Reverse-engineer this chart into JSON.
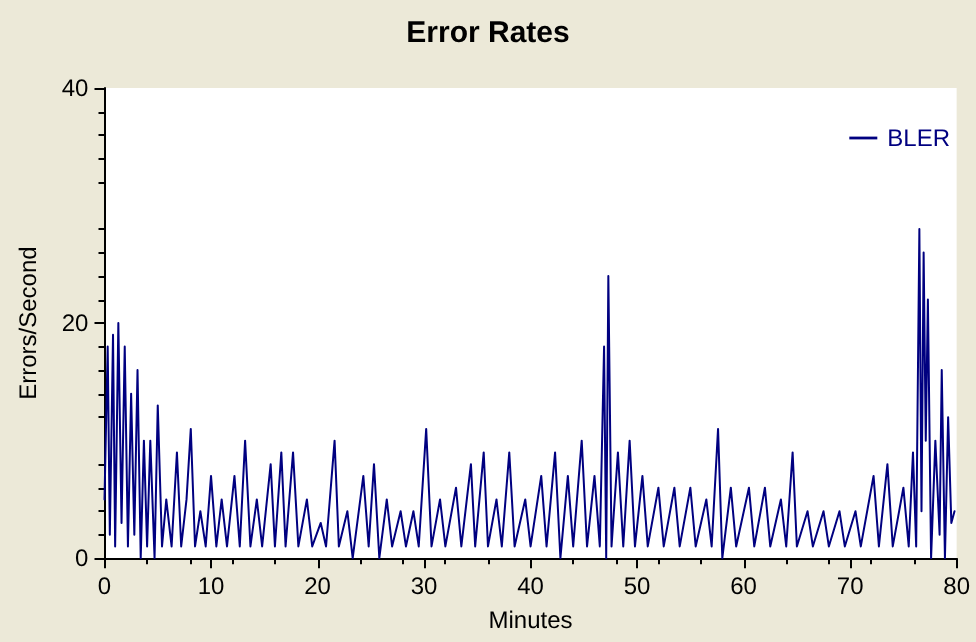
{
  "chart_data": {
    "type": "line",
    "title": "Error Rates",
    "xlabel": "Minutes",
    "ylabel": "Errors/Second",
    "x": [
      0,
      0.3,
      0.5,
      0.8,
      1.0,
      1.3,
      1.6,
      1.9,
      2.2,
      2.5,
      2.8,
      3.1,
      3.4,
      3.7,
      4.0,
      4.3,
      4.7,
      5.0,
      5.4,
      5.8,
      6.3,
      6.8,
      7.2,
      7.7,
      8.1,
      8.5,
      9.0,
      9.5,
      10.0,
      10.5,
      11.0,
      11.5,
      12.2,
      12.7,
      13.2,
      13.7,
      14.3,
      14.8,
      15.6,
      16.0,
      16.6,
      17.0,
      17.7,
      18.2,
      19.0,
      19.5,
      20.3,
      20.8,
      21.6,
      22.0,
      22.8,
      23.3,
      24.3,
      24.8,
      25.3,
      25.8,
      26.5,
      27.0,
      27.8,
      28.3,
      29.0,
      29.5,
      30.2,
      30.7,
      31.5,
      32.0,
      33.0,
      33.5,
      34.4,
      34.8,
      35.6,
      36.0,
      36.8,
      37.3,
      38.0,
      38.5,
      39.5,
      40.0,
      41.0,
      41.5,
      42.3,
      42.8,
      43.5,
      44.0,
      44.8,
      45.3,
      46.0,
      46.5,
      46.9,
      47.1,
      47.3,
      47.6,
      48.2,
      48.7,
      49.3,
      49.8,
      50.5,
      51.0,
      52.0,
      52.5,
      53.5,
      54.0,
      55.0,
      55.5,
      56.5,
      57.0,
      57.6,
      58.0,
      58.8,
      59.3,
      60.5,
      61.0,
      62.0,
      62.5,
      63.5,
      64.0,
      64.6,
      65.0,
      66.0,
      66.5,
      67.5,
      68.0,
      69.0,
      69.5,
      70.5,
      71.0,
      72.2,
      72.7,
      73.5,
      74.0,
      75.0,
      75.5,
      75.9,
      76.2,
      76.5,
      76.7,
      76.9,
      77.1,
      77.3,
      77.6,
      78.0,
      78.4,
      78.6,
      78.9,
      79.2,
      79.5,
      79.8
    ],
    "series": [
      {
        "name": "BLER",
        "color": "#000080",
        "values": [
          5,
          18,
          2,
          19,
          1,
          20,
          3,
          18,
          1,
          14,
          2,
          16,
          0,
          10,
          1,
          10,
          0,
          13,
          1,
          5,
          1,
          9,
          1,
          5,
          11,
          1,
          4,
          1,
          7,
          1,
          5,
          1,
          7,
          1,
          10,
          1,
          5,
          1,
          8,
          1,
          9,
          1,
          9,
          1,
          5,
          1,
          3,
          1,
          10,
          1,
          4,
          0,
          7,
          1,
          8,
          0,
          5,
          1,
          4,
          1,
          4,
          1,
          11,
          1,
          5,
          1,
          6,
          1,
          8,
          1,
          9,
          1,
          5,
          1,
          9,
          1,
          5,
          1,
          7,
          1,
          9,
          0,
          7,
          1,
          10,
          1,
          7,
          1,
          18,
          0,
          24,
          1,
          9,
          1,
          10,
          1,
          7,
          1,
          6,
          1,
          6,
          1,
          6,
          1,
          5,
          1,
          11,
          0,
          6,
          1,
          6,
          1,
          6,
          1,
          5,
          1,
          9,
          1,
          4,
          1,
          4,
          1,
          4,
          1,
          4,
          1,
          7,
          1,
          8,
          1,
          6,
          1,
          9,
          1,
          28,
          4,
          26,
          10,
          22,
          0,
          10,
          2,
          16,
          0,
          12,
          3,
          4
        ]
      }
    ],
    "xlim": [
      0,
      80
    ],
    "xticks": [
      0,
      10,
      20,
      30,
      40,
      50,
      60,
      70,
      80
    ],
    "ylim": [
      0,
      40
    ],
    "yticks": [
      0,
      20,
      40
    ],
    "grid": false,
    "legend": "top right",
    "marker": "none",
    "line_style": "solid"
  }
}
